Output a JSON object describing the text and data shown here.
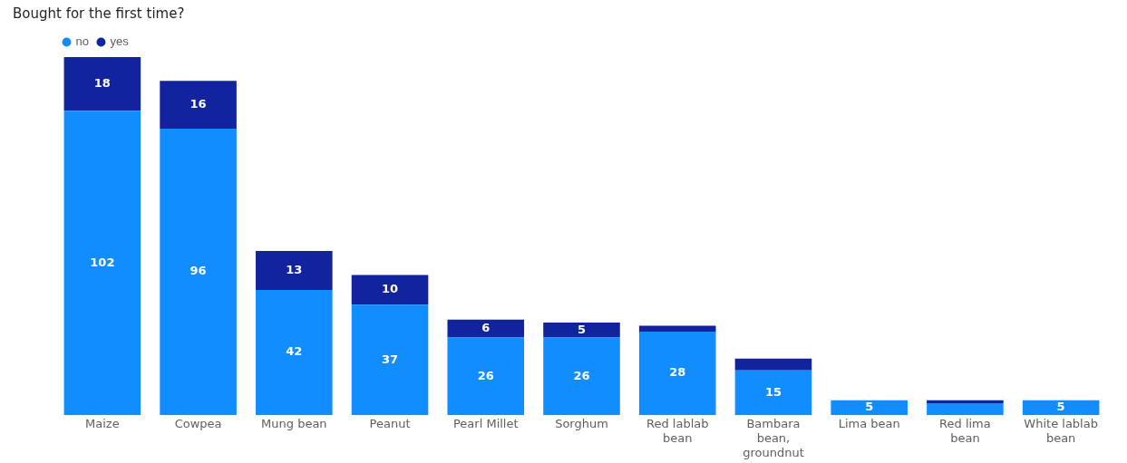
{
  "chart_data": {
    "type": "bar",
    "title": "Bought for the first time?",
    "stacked": true,
    "legend": "top left",
    "grid": false,
    "tick_labels": "x",
    "categories": [
      "Maize",
      "Cowpea",
      "Mung bean",
      "Peanut",
      "Pearl Millet",
      "Sorghum",
      "Red lablab bean",
      "Bambara bean, groundnut",
      "Lima bean",
      "Red lima bean",
      "White lablab bean"
    ],
    "series": [
      {
        "name": "no",
        "color": "#118dff",
        "values": [
          102,
          96,
          42,
          37,
          26,
          26,
          28,
          15,
          5,
          4,
          5
        ],
        "value_labels": [
          "102",
          "96",
          "42",
          "37",
          "26",
          "26",
          "28",
          "15",
          "5",
          null,
          "5"
        ]
      },
      {
        "name": "yes",
        "color": "#12239e",
        "values": [
          18,
          16,
          13,
          10,
          6,
          5,
          2,
          4,
          null,
          1,
          null
        ],
        "value_labels": [
          "18",
          "16",
          "13",
          "10",
          "6",
          "5",
          null,
          null,
          null,
          null,
          null
        ]
      }
    ]
  }
}
